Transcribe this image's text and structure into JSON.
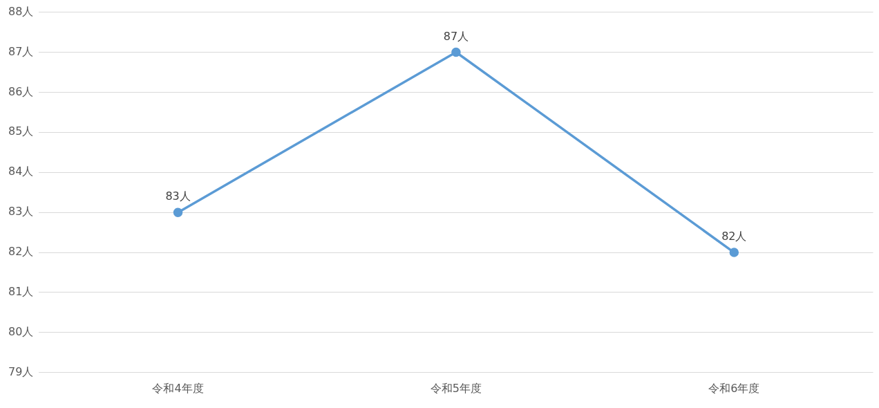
{
  "chart_data": {
    "type": "line",
    "categories": [
      "令和4年度",
      "令和5年度",
      "令和6年度"
    ],
    "series": [
      {
        "color": "#5b9bd5",
        "values": [
          83,
          87,
          82
        ],
        "value_labels": [
          "83人",
          "87人",
          "82人"
        ]
      }
    ],
    "ylim": [
      79,
      88
    ],
    "yticks": [
      {
        "value": 79,
        "label": "79人"
      },
      {
        "value": 80,
        "label": "80人"
      },
      {
        "value": 81,
        "label": "81人"
      },
      {
        "value": 82,
        "label": "82人"
      },
      {
        "value": 83,
        "label": "83人"
      },
      {
        "value": 84,
        "label": "84人"
      },
      {
        "value": 85,
        "label": "85人"
      },
      {
        "value": 86,
        "label": "86人"
      },
      {
        "value": 87,
        "label": "87人"
      },
      {
        "value": 88,
        "label": "88人"
      }
    ],
    "grid": "y",
    "legend": false,
    "marker": "circle",
    "line_style": "solid"
  }
}
